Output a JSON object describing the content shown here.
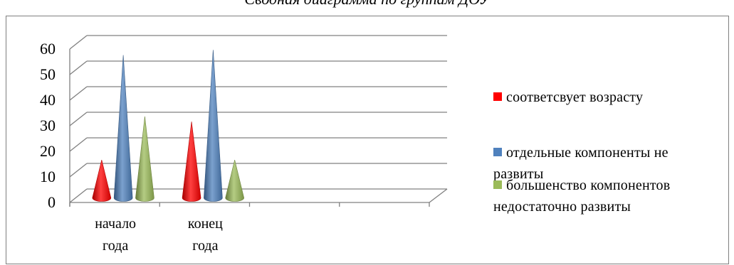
{
  "chart_data": {
    "type": "bar",
    "style": "3d-cone",
    "title": "Сводная диаграмма по группам ДОУ",
    "categories": [
      "начало года",
      "конец года"
    ],
    "category_lines": [
      [
        "начало",
        "года"
      ],
      [
        "конец",
        "года"
      ]
    ],
    "empty_category_slots": 2,
    "series": [
      {
        "name": "соответсвует  возрасту",
        "values": [
          14,
          29
        ],
        "color": "#ff0000"
      },
      {
        "name": "отдельные компоненты не развиты",
        "values": [
          55,
          57
        ],
        "color": "#4f81bd"
      },
      {
        "name": "большенство компонентов недостаточно развиты",
        "values": [
          31,
          14
        ],
        "color": "#9bbb59"
      }
    ],
    "legend_lines": [
      [
        "соответсвует  возрасту"
      ],
      [
        "отдельные компоненты не",
        "развиты"
      ],
      [
        "большенство компонентов",
        "недостаточно развиты"
      ]
    ],
    "ylim": [
      0,
      60
    ],
    "yticks": [
      0,
      10,
      20,
      30,
      40,
      50,
      60
    ],
    "grid": true,
    "legend": "right",
    "xlabel": "",
    "ylabel": ""
  }
}
